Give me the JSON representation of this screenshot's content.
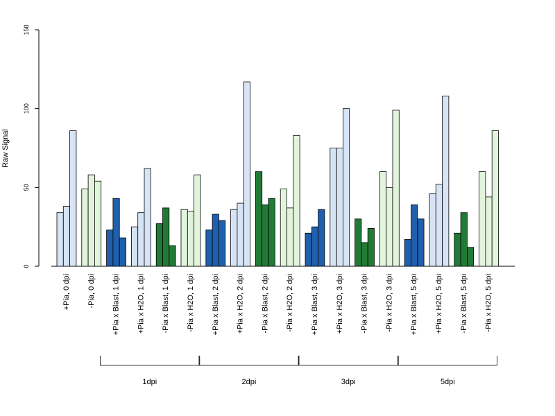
{
  "chart_data": {
    "type": "bar",
    "ylabel": "Raw Signal",
    "xlabel": "",
    "ylim": [
      0,
      150
    ],
    "yticks": [
      0,
      50,
      100,
      150
    ],
    "grid": false,
    "legend": "none",
    "categories": [
      "+Pia, 0 dpi",
      "-Pia, 0 dpi",
      "+Pia x Blast, 1 dpi",
      "+Pia x H2O, 1 dpi",
      "-Pia x Blast, 1 dpi",
      "-Pia x H2O, 1 dpi",
      "+Pia x Blast, 2 dpi",
      "+Pia x H2O, 2 dpi",
      "-Pia x Blast, 2 dpi",
      "-Pia x H2O, 2 dpi",
      "+Pia x Blast, 3 dpi",
      "+Pia x H2O, 3 dpi",
      "-Pia x Blast, 3 dpi",
      "-Pia x H2O, 3 dpi",
      "+Pia x Blast, 5 dpi",
      "+Pia x H2O, 5 dpi",
      "-Pia x Blast, 5 dpi",
      "-Pia x H2O, 5 dpi"
    ],
    "category_colors": [
      "#d6e4f5",
      "#e2f5dc",
      "#1f5fad",
      "#d6e4f5",
      "#217a36",
      "#e2f5dc",
      "#1f5fad",
      "#d6e4f5",
      "#217a36",
      "#e2f5dc",
      "#1f5fad",
      "#d6e4f5",
      "#217a36",
      "#e2f5dc",
      "#1f5fad",
      "#d6e4f5",
      "#217a36",
      "#e2f5dc"
    ],
    "replicate_values": [
      [
        34,
        38,
        86
      ],
      [
        49,
        58,
        54
      ],
      [
        23,
        43,
        18
      ],
      [
        25,
        34,
        62
      ],
      [
        27,
        37,
        13
      ],
      [
        36,
        35,
        58
      ],
      [
        23,
        33,
        29
      ],
      [
        36,
        40,
        117
      ],
      [
        60,
        39,
        43
      ],
      [
        49,
        37,
        83
      ],
      [
        21,
        25,
        36
      ],
      [
        75,
        75,
        100
      ],
      [
        30,
        15,
        24
      ],
      [
        60,
        50,
        99
      ],
      [
        17,
        39,
        30
      ],
      [
        46,
        52,
        108
      ],
      [
        21,
        34,
        12
      ],
      [
        60,
        44,
        86
      ]
    ],
    "groups": [
      {
        "label": "1dpi",
        "start": 2,
        "end": 5
      },
      {
        "label": "2dpi",
        "start": 6,
        "end": 9
      },
      {
        "label": "3dpi",
        "start": 10,
        "end": 13
      },
      {
        "label": "5dpi",
        "start": 14,
        "end": 17
      }
    ]
  }
}
